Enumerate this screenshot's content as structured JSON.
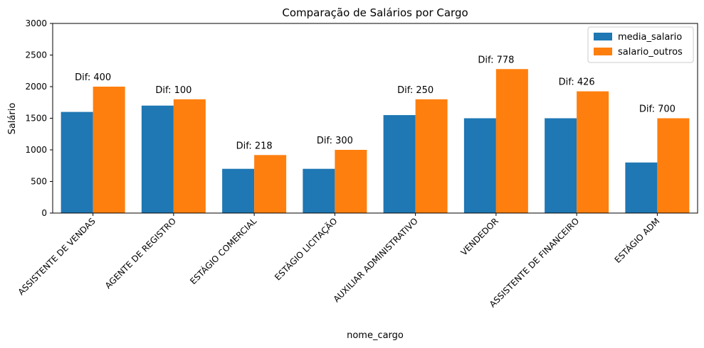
{
  "chart_data": {
    "type": "bar",
    "title": "Comparação de Salários por Cargo",
    "xlabel": "nome_cargo",
    "ylabel": "Salário",
    "ylim": [
      0,
      3000
    ],
    "yticks": [
      0,
      500,
      1000,
      1500,
      2000,
      2500,
      3000
    ],
    "categories": [
      "ASSISTENTE DE VENDAS",
      "AGENTE DE REGISTRO",
      "ESTÁGIO COMERCIAL",
      "ESTÁGIO LICITAÇÃO",
      "AUXILIAR ADMINISTRATIVO",
      "VENDEDOR",
      "ASSISTENTE DE FINANCEIRO",
      "ESTÁGIO ADM"
    ],
    "series": [
      {
        "name": "media_salario",
        "color": "#1f77b4",
        "values": [
          1600,
          1700,
          700,
          700,
          1550,
          1500,
          1500,
          800
        ]
      },
      {
        "name": "salario_outros",
        "color": "#ff7f0e",
        "values": [
          2000,
          1800,
          918,
          1000,
          1800,
          2278,
          1926,
          1500
        ]
      }
    ],
    "annotations": [
      "Dif: 400",
      "Dif: 100",
      "Dif: 218",
      "Dif: 300",
      "Dif: 250",
      "Dif: 778",
      "Dif: 426",
      "Dif: 700"
    ],
    "legend": "top-right",
    "grid": false
  }
}
